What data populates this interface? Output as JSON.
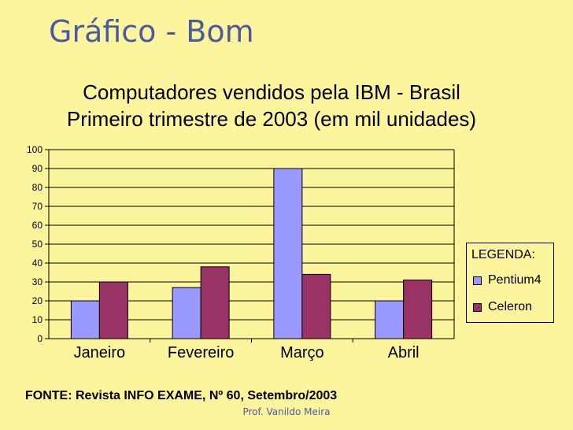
{
  "slide": {
    "title": "Gráfico - Bom",
    "footer": "Prof. Vanildo Meira",
    "background": "#fdf59d",
    "title_color": "#4a5aa0"
  },
  "chart_data": {
    "type": "bar",
    "title_line1": "Computadores vendidos pela IBM - Brasil",
    "title_line2": "Primeiro trimestre de 2003 (em mil unidades)",
    "categories": [
      "Janeiro",
      "Fevereiro",
      "Março",
      "Abril"
    ],
    "series": [
      {
        "name": "Pentium4",
        "values": [
          20,
          27,
          90,
          20
        ],
        "color": "#9999ff"
      },
      {
        "name": "Celeron",
        "values": [
          30,
          38,
          34,
          31
        ],
        "color": "#993366"
      }
    ],
    "ylim": [
      0,
      100
    ],
    "yticks": [
      0,
      10,
      20,
      30,
      40,
      50,
      60,
      70,
      80,
      90,
      100
    ],
    "grid": true,
    "legend": {
      "title": "LEGENDA:",
      "placement": "right"
    },
    "source": "FONTE: Revista INFO EXAME, Nº 60, Setembro/2003"
  }
}
